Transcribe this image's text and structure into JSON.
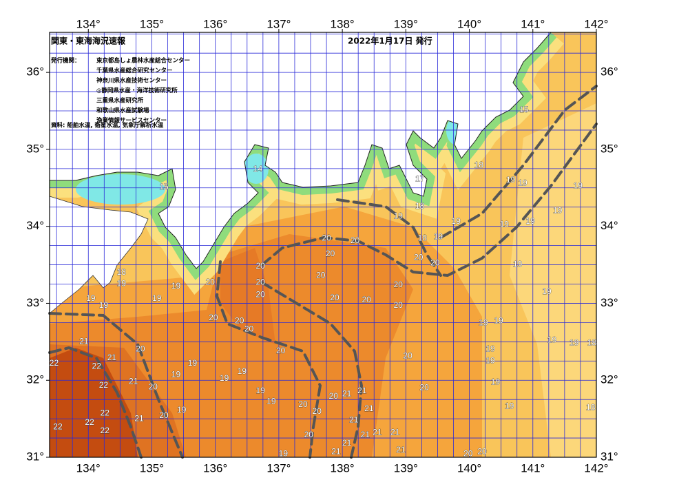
{
  "header": {
    "title": "関東・東海海況速報",
    "date": "2022年1月17日 発行"
  },
  "issuers": {
    "label": "発行機関：",
    "names": [
      "東京都島しょ農林水産総合センター",
      "千葉県水産総合研究センター",
      "神奈川県水産技術センター",
      "◎静岡県水産・海洋技術研究所",
      "三重県水産研究所",
      "和歌山県水産試験場",
      "漁業情報サービスセンター"
    ]
  },
  "source": "資料: 船舶水温, 衛星水温, 気象庁解析水温",
  "map": {
    "lon_range": [
      133.39,
      142
    ],
    "lat_range": [
      31,
      36.52
    ],
    "lon_ticks": [
      {
        "value": 134,
        "label": "134°"
      },
      {
        "value": 135,
        "label": "135°"
      },
      {
        "value": 136,
        "label": "136°"
      },
      {
        "value": 137,
        "label": "137°"
      },
      {
        "value": 138,
        "label": "138°"
      },
      {
        "value": 139,
        "label": "139°"
      },
      {
        "value": 140,
        "label": "140°"
      },
      {
        "value": 141,
        "label": "141°"
      },
      {
        "value": 142,
        "label": "142°"
      }
    ],
    "lat_ticks": [
      {
        "value": 31,
        "label": "31°"
      },
      {
        "value": 32,
        "label": "32°"
      },
      {
        "value": 33,
        "label": "33°"
      },
      {
        "value": 34,
        "label": "34°"
      },
      {
        "value": 35,
        "label": "35°"
      },
      {
        "value": 36,
        "label": "36°"
      }
    ],
    "contour_labels": [
      {
        "lon": 137.75,
        "lat": 33.84,
        "value": 20
      },
      {
        "lon": 138.2,
        "lat": 33.81,
        "value": 20
      },
      {
        "lon": 137.81,
        "lat": 33.64,
        "value": 20
      },
      {
        "lon": 136.71,
        "lat": 33.48,
        "value": 20
      },
      {
        "lon": 136.71,
        "lat": 33.27,
        "value": 20
      },
      {
        "lon": 136.71,
        "lat": 33.11,
        "value": 20
      },
      {
        "lon": 135.92,
        "lat": 33.27,
        "value": 20
      },
      {
        "lon": 137.66,
        "lat": 33.36,
        "value": 20
      },
      {
        "lon": 137.88,
        "lat": 33.07,
        "value": 20
      },
      {
        "lon": 138.38,
        "lat": 33.04,
        "value": 20
      },
      {
        "lon": 138.88,
        "lat": 33.24,
        "value": 20
      },
      {
        "lon": 138.88,
        "lat": 32.97,
        "value": 20
      },
      {
        "lon": 139.2,
        "lat": 33.59,
        "value": 20
      },
      {
        "lon": 139.46,
        "lat": 33.52,
        "value": 20
      },
      {
        "lon": 135.97,
        "lat": 32.81,
        "value": 20
      },
      {
        "lon": 136.38,
        "lat": 32.77,
        "value": 20
      },
      {
        "lon": 136.53,
        "lat": 32.66,
        "value": 20
      },
      {
        "lon": 137.03,
        "lat": 32.38,
        "value": 20
      },
      {
        "lon": 139.03,
        "lat": 32.31,
        "value": 20
      },
      {
        "lon": 139.29,
        "lat": 31.9,
        "value": 20
      },
      {
        "lon": 134.82,
        "lat": 32.4,
        "value": 20
      },
      {
        "lon": 135.02,
        "lat": 31.91,
        "value": 20
      },
      {
        "lon": 135.19,
        "lat": 31.54,
        "value": 20
      },
      {
        "lon": 137.47,
        "lat": 31.29,
        "value": 20
      },
      {
        "lon": 137.86,
        "lat": 31.79,
        "value": 20
      },
      {
        "lon": 137.38,
        "lat": 31.68,
        "value": 20
      },
      {
        "lon": 137.6,
        "lat": 31.59,
        "value": 20
      },
      {
        "lon": 140.2,
        "lat": 31.07,
        "value": 20
      },
      {
        "lon": 139.98,
        "lat": 31.04,
        "value": 20
      },
      {
        "lon": 133.93,
        "lat": 32.5,
        "value": 21
      },
      {
        "lon": 134.37,
        "lat": 32.29,
        "value": 21
      },
      {
        "lon": 134.71,
        "lat": 31.98,
        "value": 21
      },
      {
        "lon": 134.8,
        "lat": 31.5,
        "value": 21
      },
      {
        "lon": 138.07,
        "lat": 31.82,
        "value": 21
      },
      {
        "lon": 138.31,
        "lat": 31.86,
        "value": 21
      },
      {
        "lon": 138.42,
        "lat": 31.63,
        "value": 21
      },
      {
        "lon": 138.18,
        "lat": 31.48,
        "value": 21
      },
      {
        "lon": 138.07,
        "lat": 31.18,
        "value": 21
      },
      {
        "lon": 138.55,
        "lat": 31.32,
        "value": 21
      },
      {
        "lon": 138.83,
        "lat": 31.32,
        "value": 21
      },
      {
        "lon": 138.92,
        "lat": 31.09,
        "value": 21
      },
      {
        "lon": 137.9,
        "lat": 31.07,
        "value": 21
      },
      {
        "lon": 138.36,
        "lat": 31.29,
        "value": 21
      },
      {
        "lon": 133.46,
        "lat": 32.22,
        "value": 22
      },
      {
        "lon": 134.13,
        "lat": 32.18,
        "value": 22
      },
      {
        "lon": 134.24,
        "lat": 31.93,
        "value": 22
      },
      {
        "lon": 134.26,
        "lat": 31.57,
        "value": 22
      },
      {
        "lon": 134.02,
        "lat": 31.45,
        "value": 22
      },
      {
        "lon": 134.26,
        "lat": 31.34,
        "value": 22
      },
      {
        "lon": 133.52,
        "lat": 31.39,
        "value": 22
      },
      {
        "lon": 134.52,
        "lat": 33.25,
        "value": 19
      },
      {
        "lon": 134.04,
        "lat": 33.06,
        "value": 19
      },
      {
        "lon": 134.24,
        "lat": 32.97,
        "value": 19
      },
      {
        "lon": 135.08,
        "lat": 33.06,
        "value": 19
      },
      {
        "lon": 135.38,
        "lat": 33.22,
        "value": 19
      },
      {
        "lon": 135.64,
        "lat": 32.22,
        "value": 19
      },
      {
        "lon": 135.38,
        "lat": 32.07,
        "value": 19
      },
      {
        "lon": 136.14,
        "lat": 32.02,
        "value": 19
      },
      {
        "lon": 136.42,
        "lat": 32.11,
        "value": 19
      },
      {
        "lon": 136.71,
        "lat": 31.86,
        "value": 19
      },
      {
        "lon": 136.88,
        "lat": 31.72,
        "value": 19
      },
      {
        "lon": 135.47,
        "lat": 31.61,
        "value": 19
      },
      {
        "lon": 137.07,
        "lat": 31.04,
        "value": 19
      },
      {
        "lon": 138.88,
        "lat": 34.13,
        "value": 19
      },
      {
        "lon": 139.51,
        "lat": 33.86,
        "value": 19
      },
      {
        "lon": 139.79,
        "lat": 34.06,
        "value": 19
      },
      {
        "lon": 140.55,
        "lat": 34.02,
        "value": 19
      },
      {
        "lon": 140.96,
        "lat": 34.06,
        "value": 19
      },
      {
        "lon": 140.65,
        "lat": 34.6,
        "value": 19
      },
      {
        "lon": 140.84,
        "lat": 34.56,
        "value": 19
      },
      {
        "lon": 141.71,
        "lat": 34.52,
        "value": 19
      },
      {
        "lon": 141.39,
        "lat": 34.2,
        "value": 19
      },
      {
        "lon": 140.76,
        "lat": 33.5,
        "value": 19
      },
      {
        "lon": 141.22,
        "lat": 33.15,
        "value": 19
      },
      {
        "lon": 140.22,
        "lat": 32.74,
        "value": 19
      },
      {
        "lon": 140.46,
        "lat": 32.77,
        "value": 19
      },
      {
        "lon": 140.33,
        "lat": 32.4,
        "value": 19
      },
      {
        "lon": 140.33,
        "lat": 32.25,
        "value": 19
      },
      {
        "lon": 140.41,
        "lat": 31.97,
        "value": 19
      },
      {
        "lon": 140.63,
        "lat": 31.66,
        "value": 19
      },
      {
        "lon": 141.3,
        "lat": 32.52,
        "value": 19
      },
      {
        "lon": 141.65,
        "lat": 32.48,
        "value": 19
      },
      {
        "lon": 141.93,
        "lat": 32.48,
        "value": 18
      },
      {
        "lon": 141.91,
        "lat": 31.64,
        "value": 18
      },
      {
        "lon": 140.15,
        "lat": 34.79,
        "value": 18
      },
      {
        "lon": 139.22,
        "lat": 34.26,
        "value": 18
      },
      {
        "lon": 134.52,
        "lat": 33.4,
        "value": 18
      },
      {
        "lon": 139.26,
        "lat": 33.84,
        "value": 18
      },
      {
        "lon": 139.22,
        "lat": 34.61,
        "value": 17
      },
      {
        "lon": 135.19,
        "lat": 34.51,
        "value": 15
      },
      {
        "lon": 140.86,
        "lat": 35.51,
        "value": 15
      },
      {
        "lon": 136.67,
        "lat": 34.74,
        "value": 14
      }
    ]
  }
}
